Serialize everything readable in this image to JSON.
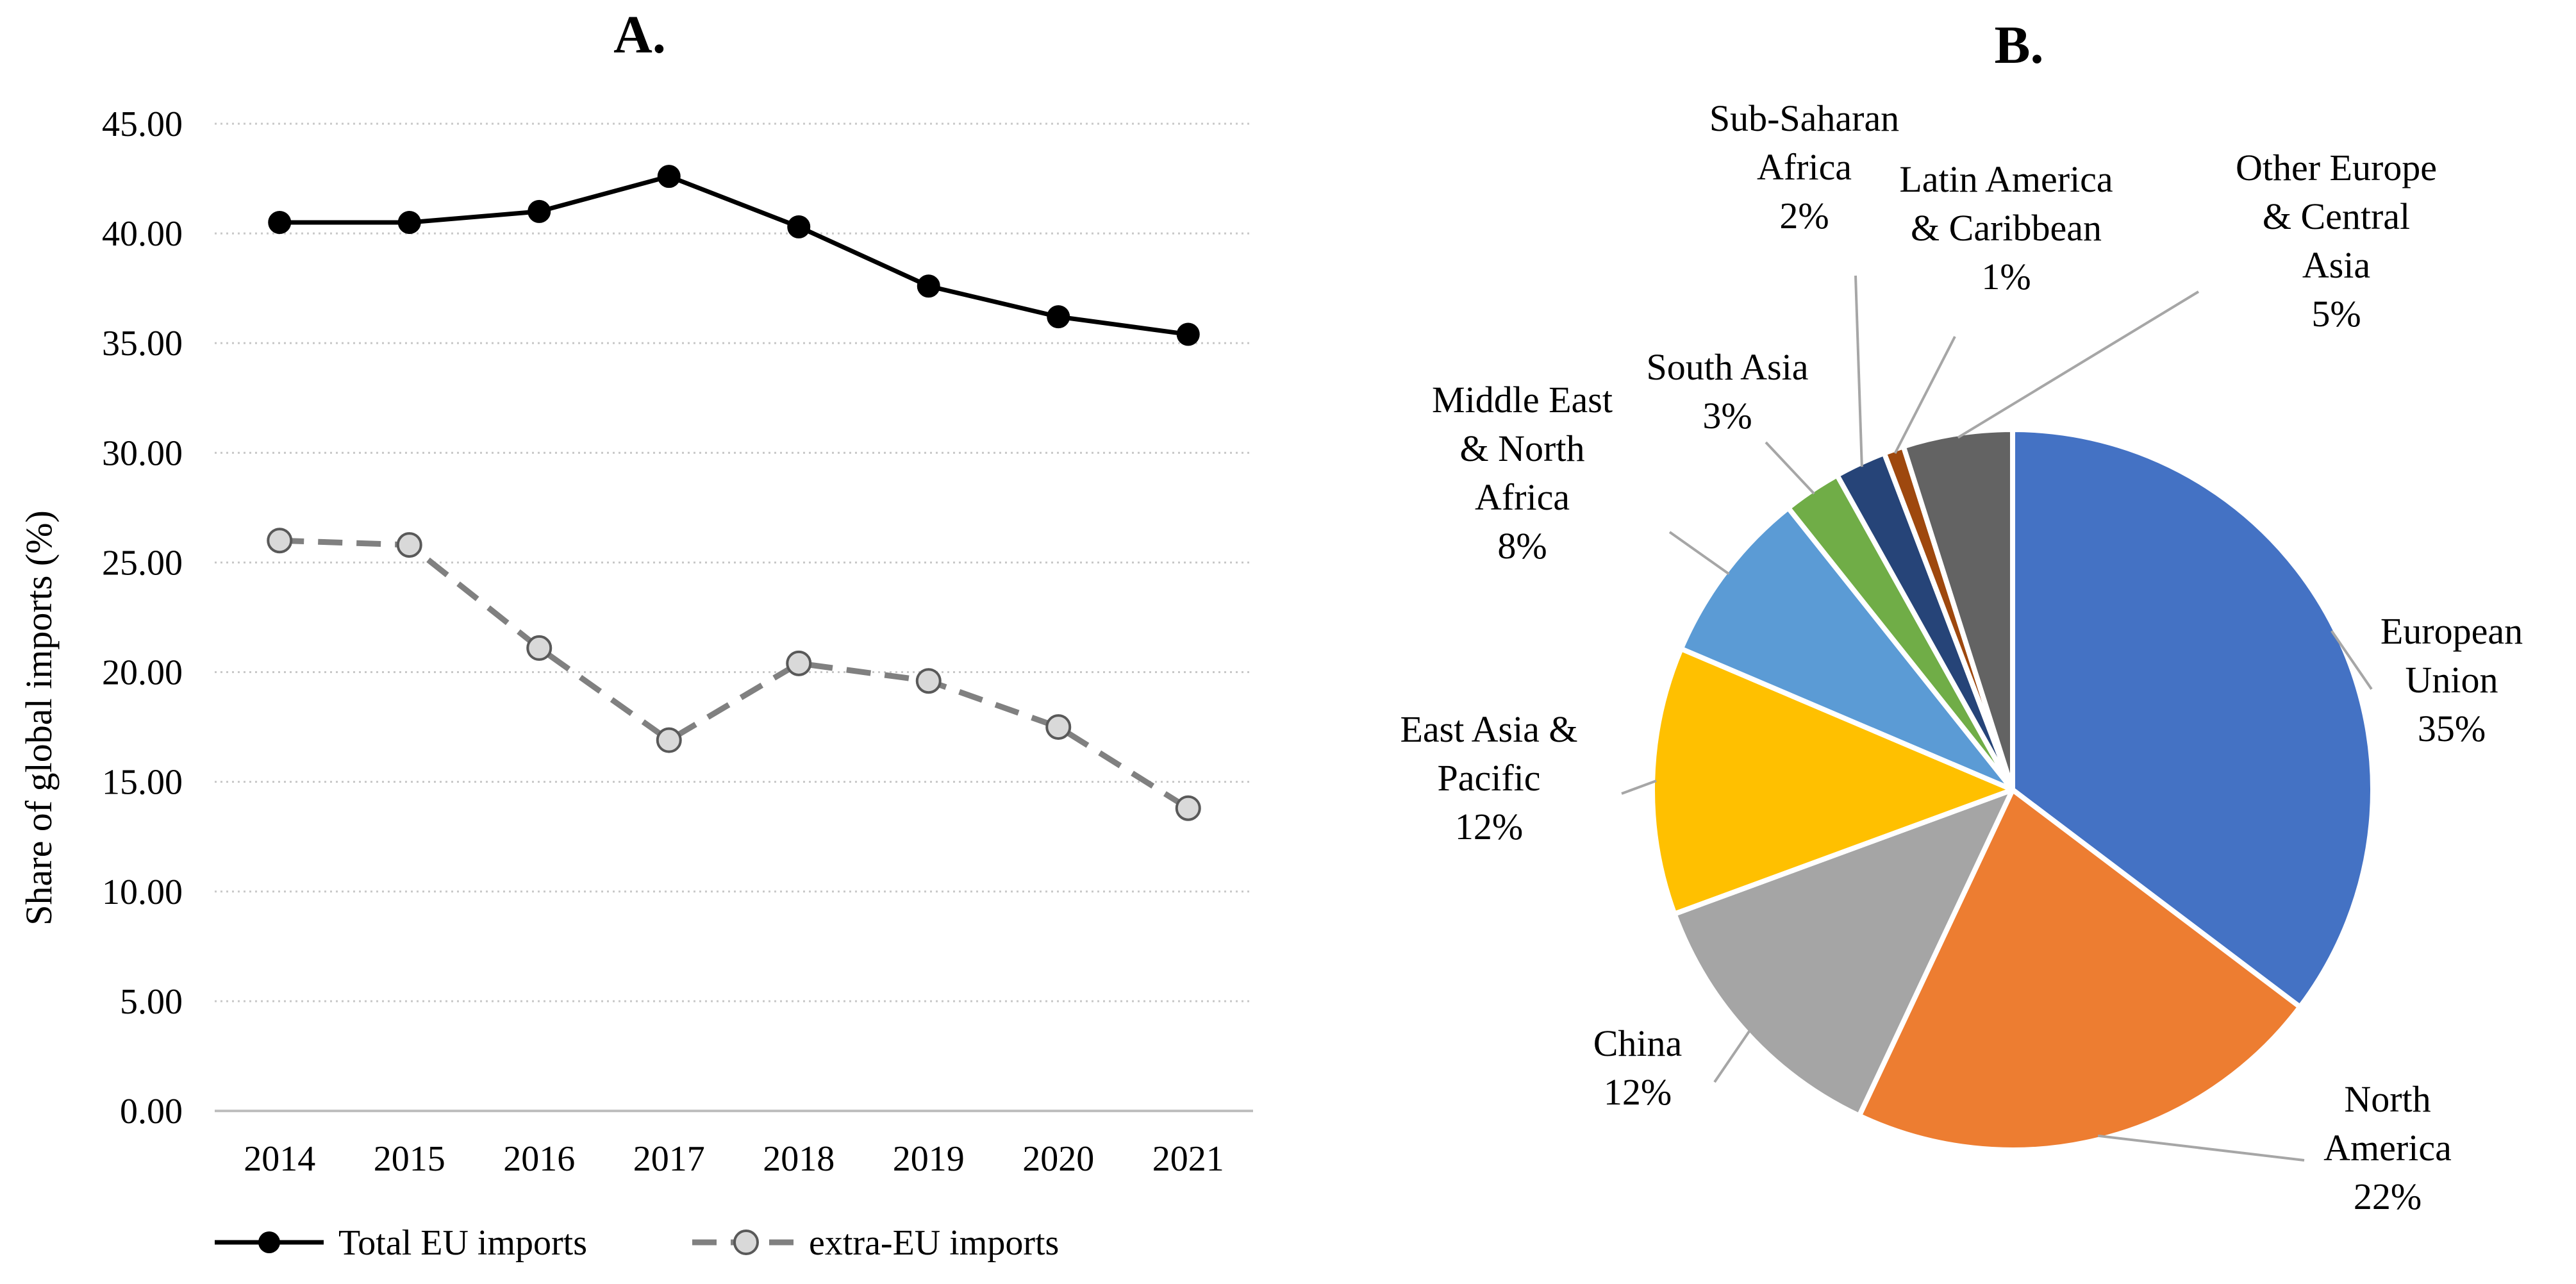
{
  "chart_data": [
    {
      "type": "line",
      "panel_title": "A.",
      "ylabel": "Share of global imports (%)",
      "xlabel": "",
      "x": [
        "2014",
        "2015",
        "2016",
        "2017",
        "2018",
        "2019",
        "2020",
        "2021"
      ],
      "ylim": [
        0,
        45
      ],
      "yticks": [
        "0.00",
        "5.00",
        "10.00",
        "15.00",
        "20.00",
        "25.00",
        "30.00",
        "35.00",
        "40.00",
        "45.00"
      ],
      "grid": "horizontal dotted",
      "legend_position": "bottom",
      "series": [
        {
          "name": "Total EU imports",
          "style": "solid",
          "values": [
            40.5,
            40.5,
            41.0,
            42.6,
            40.3,
            37.6,
            36.2,
            35.4
          ]
        },
        {
          "name": "extra-EU imports",
          "style": "dashed",
          "values": [
            26.0,
            25.8,
            21.1,
            16.9,
            20.4,
            19.6,
            17.5,
            13.8
          ]
        }
      ]
    },
    {
      "type": "pie",
      "panel_title": "B.",
      "slices": [
        {
          "name": "European Union",
          "lines": [
            "European",
            "Union"
          ],
          "pct": "35%",
          "value": 35.3,
          "color": "#4472C4"
        },
        {
          "name": "North America",
          "lines": [
            "North",
            "America"
          ],
          "pct": "22%",
          "value": 21.7,
          "color": "#ED7D31"
        },
        {
          "name": "China",
          "lines": [
            "China"
          ],
          "pct": "12%",
          "value": 12.4,
          "color": "#A5A5A5"
        },
        {
          "name": "East Asia & Pacific",
          "lines": [
            "East Asia &",
            "Pacific"
          ],
          "pct": "12%",
          "value": 12.0,
          "color": "#FFC000"
        },
        {
          "name": "Middle East & North Africa",
          "lines": [
            "Middle East",
            "& North",
            "Africa"
          ],
          "pct": "8%",
          "value": 7.9,
          "color": "#5B9BD5"
        },
        {
          "name": "South Asia",
          "lines": [
            "South Asia"
          ],
          "pct": "3%",
          "value": 2.6,
          "color": "#70AD47"
        },
        {
          "name": "Sub-Saharan Africa",
          "lines": [
            "Sub-Saharan",
            "Africa"
          ],
          "pct": "2%",
          "value": 2.3,
          "color": "#264478"
        },
        {
          "name": "Latin America & Caribbean",
          "lines": [
            "Latin America",
            "& Caribbean"
          ],
          "pct": "1%",
          "value": 0.9,
          "color": "#9E480E"
        },
        {
          "name": "Other Europe & Central Asia",
          "lines": [
            "Other Europe",
            "& Central",
            "Asia"
          ],
          "pct": "5%",
          "value": 4.9,
          "color": "#636363"
        }
      ]
    }
  ]
}
